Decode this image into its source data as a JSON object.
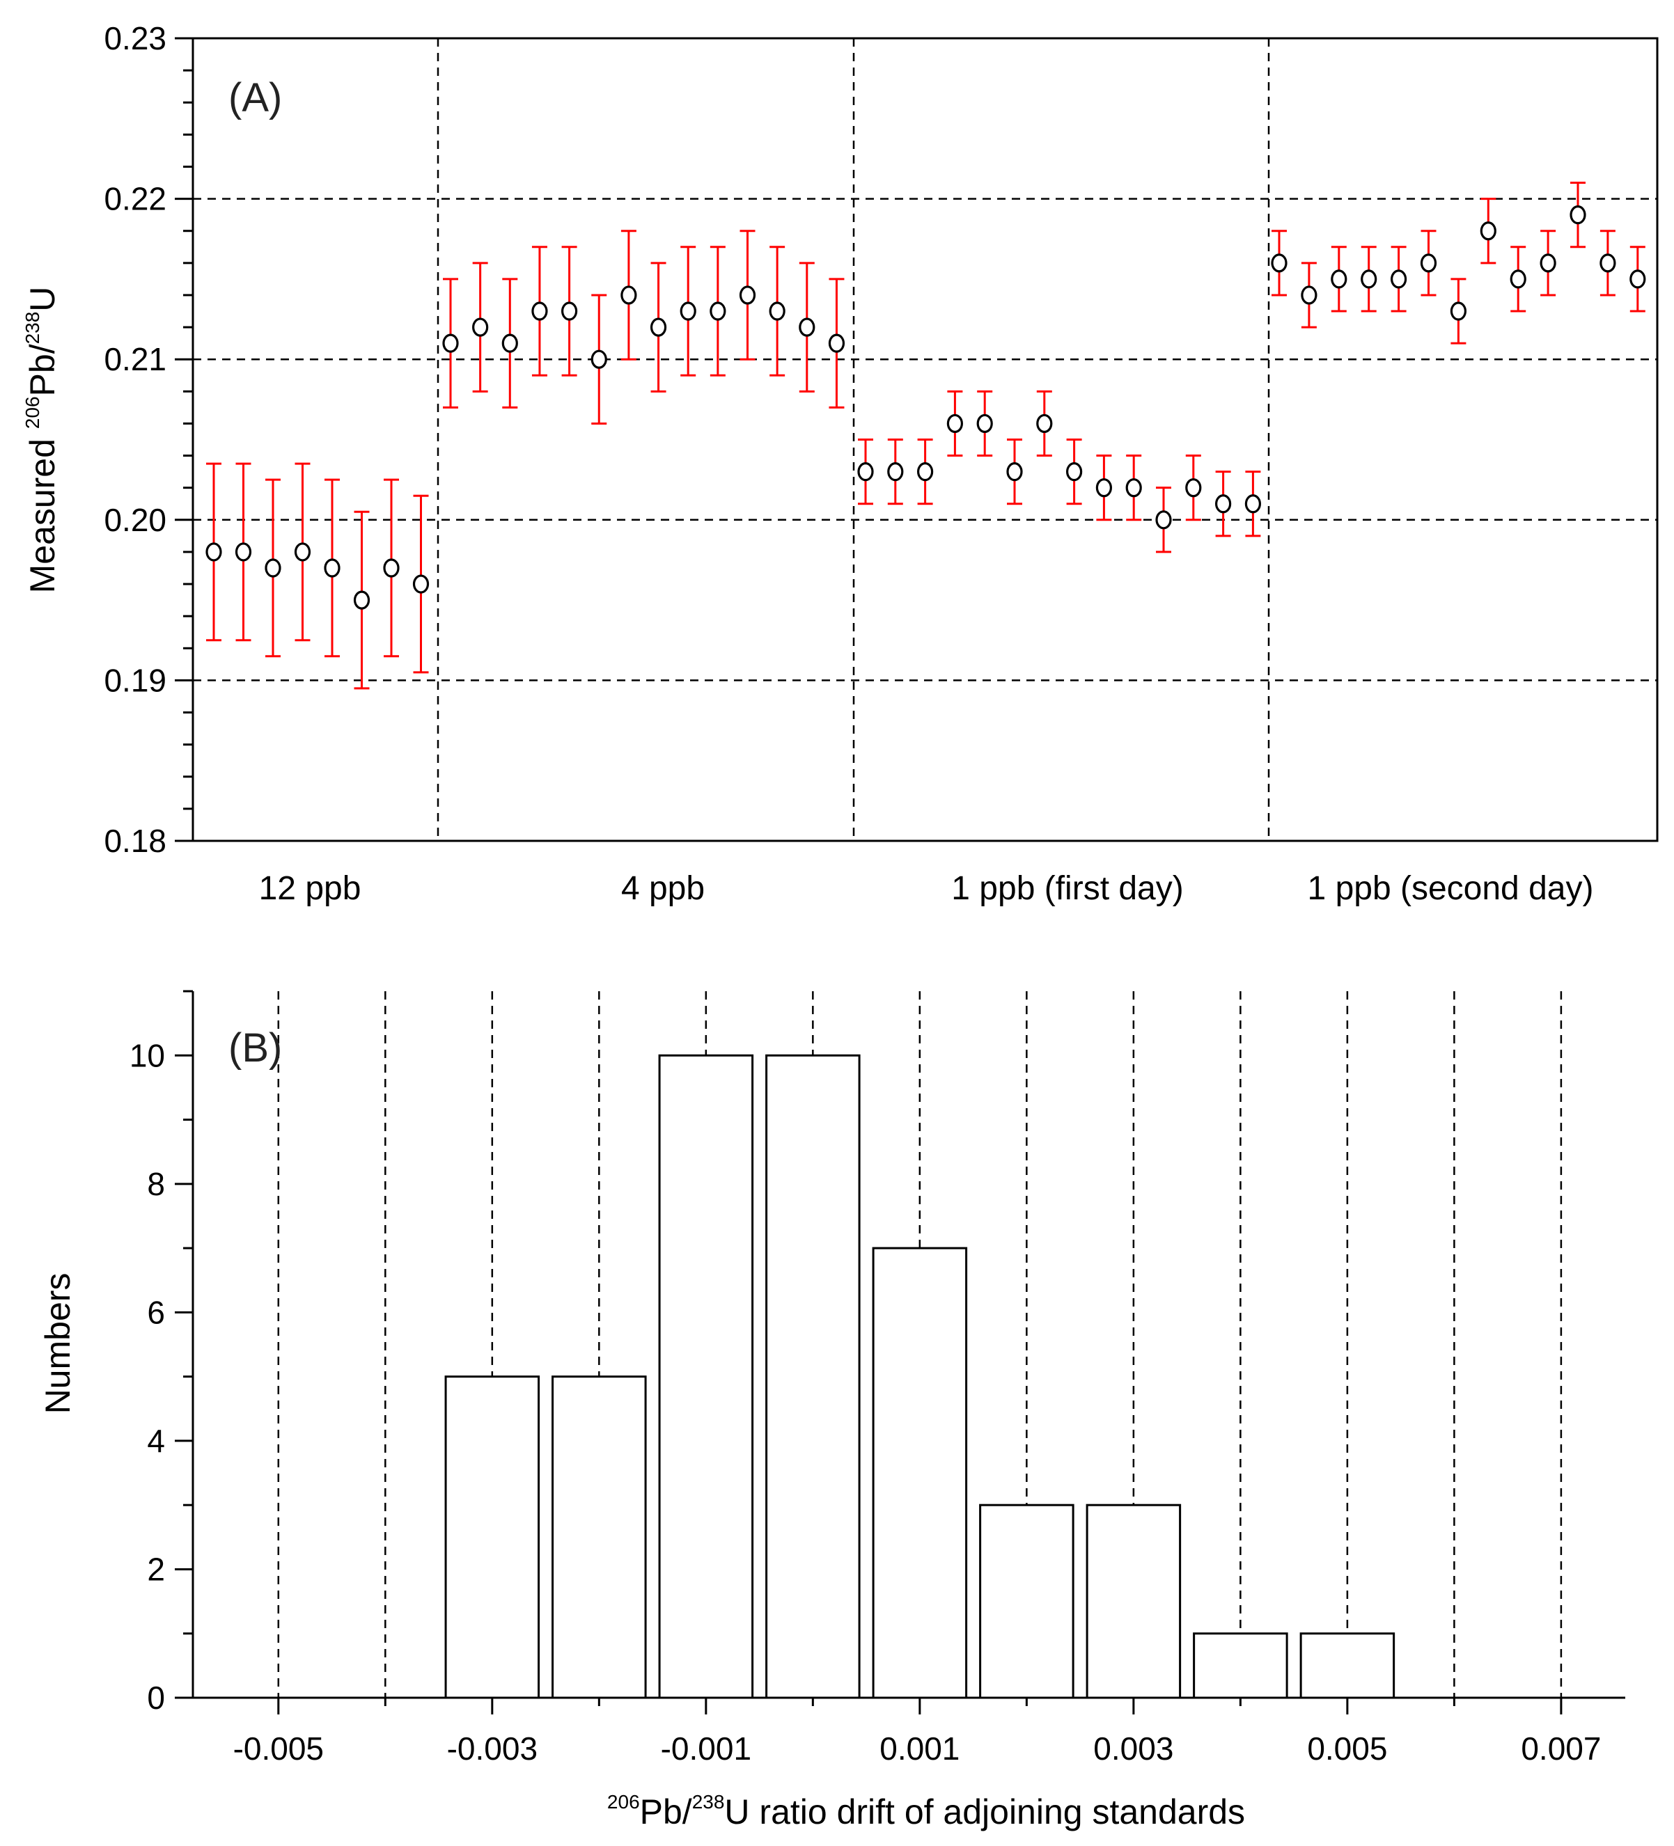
{
  "colors": {
    "errorbar": "#ff0000",
    "marker": "#000000",
    "background": "#ffffff",
    "grid": "#000000"
  },
  "chart_data": [
    {
      "panel": "(A)",
      "type": "scatter",
      "ylabel": {
        "pre": "Measured ",
        "sup1": "206",
        "mid": "Pb/",
        "sup2": "238",
        "post": "U"
      },
      "ylim": [
        0.18,
        0.23
      ],
      "yticks": [
        "0.18",
        "0.19",
        "0.20",
        "0.21",
        "0.22",
        "0.23"
      ],
      "ygrid": [
        0.19,
        0.2,
        0.21,
        0.22
      ],
      "grid": "dashed",
      "groups": [
        {
          "label": "12 ppb",
          "points": [
            {
              "y": 0.198,
              "err": 0.0055
            },
            {
              "y": 0.198,
              "err": 0.0055
            },
            {
              "y": 0.197,
              "err": 0.0055
            },
            {
              "y": 0.198,
              "err": 0.0055
            },
            {
              "y": 0.197,
              "err": 0.0055
            },
            {
              "y": 0.195,
              "err": 0.0055
            },
            {
              "y": 0.197,
              "err": 0.0055
            },
            {
              "y": 0.196,
              "err": 0.0055
            }
          ]
        },
        {
          "label": "4 ppb",
          "points": [
            {
              "y": 0.211,
              "err": 0.004
            },
            {
              "y": 0.212,
              "err": 0.004
            },
            {
              "y": 0.211,
              "err": 0.004
            },
            {
              "y": 0.213,
              "err": 0.004
            },
            {
              "y": 0.213,
              "err": 0.004
            },
            {
              "y": 0.21,
              "err": 0.004
            },
            {
              "y": 0.214,
              "err": 0.004
            },
            {
              "y": 0.212,
              "err": 0.004
            },
            {
              "y": 0.213,
              "err": 0.004
            },
            {
              "y": 0.213,
              "err": 0.004
            },
            {
              "y": 0.214,
              "err": 0.004
            },
            {
              "y": 0.213,
              "err": 0.004
            },
            {
              "y": 0.212,
              "err": 0.004
            },
            {
              "y": 0.211,
              "err": 0.004
            }
          ]
        },
        {
          "label": "1 ppb (first day)",
          "points": [
            {
              "y": 0.203,
              "err": 0.002
            },
            {
              "y": 0.203,
              "err": 0.002
            },
            {
              "y": 0.203,
              "err": 0.002
            },
            {
              "y": 0.206,
              "err": 0.002
            },
            {
              "y": 0.206,
              "err": 0.002
            },
            {
              "y": 0.203,
              "err": 0.002
            },
            {
              "y": 0.206,
              "err": 0.002
            },
            {
              "y": 0.203,
              "err": 0.002
            },
            {
              "y": 0.202,
              "err": 0.002
            },
            {
              "y": 0.202,
              "err": 0.002
            },
            {
              "y": 0.2,
              "err": 0.002
            },
            {
              "y": 0.202,
              "err": 0.002
            },
            {
              "y": 0.201,
              "err": 0.002
            },
            {
              "y": 0.201,
              "err": 0.002
            }
          ]
        },
        {
          "label": "1 ppb (second day)",
          "points": [
            {
              "y": 0.216,
              "err": 0.002
            },
            {
              "y": 0.214,
              "err": 0.002
            },
            {
              "y": 0.215,
              "err": 0.002
            },
            {
              "y": 0.215,
              "err": 0.002
            },
            {
              "y": 0.215,
              "err": 0.002
            },
            {
              "y": 0.216,
              "err": 0.002
            },
            {
              "y": 0.213,
              "err": 0.002
            },
            {
              "y": 0.218,
              "err": 0.002
            },
            {
              "y": 0.215,
              "err": 0.002
            },
            {
              "y": 0.216,
              "err": 0.002
            },
            {
              "y": 0.219,
              "err": 0.002
            },
            {
              "y": 0.216,
              "err": 0.002
            },
            {
              "y": 0.215,
              "err": 0.002
            }
          ]
        }
      ]
    },
    {
      "panel": "(B)",
      "type": "bar",
      "xlabel": {
        "sup1": "206",
        "mid": "Pb/",
        "sup2": "238",
        "post": "U ratio drift of adjoining standards"
      },
      "ylabel": "Numbers",
      "ylim": [
        0,
        11
      ],
      "xlim": [
        -0.0058,
        0.0076
      ],
      "yticks": [
        "0",
        "2",
        "4",
        "6",
        "8",
        "10"
      ],
      "xticks": [
        "-0.005",
        "-0.003",
        "-0.001",
        "0.001",
        "0.003",
        "0.005",
        "0.007"
      ],
      "xgrid": [
        -0.005,
        -0.004,
        -0.003,
        -0.002,
        -0.001,
        0,
        0.001,
        0.002,
        0.003,
        0.004,
        0.005,
        0.006,
        0.007
      ],
      "grid": "dashed",
      "categories": [
        -0.005,
        -0.004,
        -0.003,
        -0.002,
        -0.001,
        0,
        0.001,
        0.002,
        0.003,
        0.004,
        0.005,
        0.006,
        0.007
      ],
      "values": [
        0,
        0,
        5,
        5,
        10,
        10,
        7,
        3,
        3,
        1,
        1,
        0,
        0
      ]
    }
  ]
}
